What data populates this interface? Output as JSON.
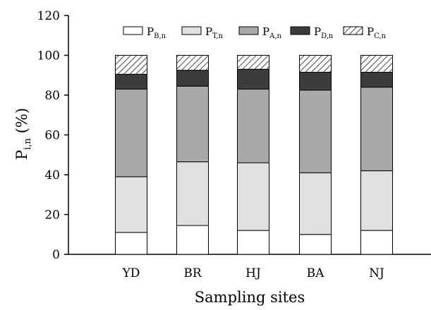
{
  "chart_data": {
    "type": "bar",
    "stacked": true,
    "categories": [
      "YD",
      "BR",
      "HJ",
      "BA",
      "NJ"
    ],
    "series": [
      {
        "name": "P",
        "sub": "B,n",
        "fill": "#ffffff",
        "pattern": "none",
        "values": [
          11,
          14.5,
          12,
          10,
          12
        ]
      },
      {
        "name": "P",
        "sub": "T,n",
        "fill": "#e0e0e0",
        "pattern": "none",
        "values": [
          28,
          32,
          34,
          31,
          30
        ]
      },
      {
        "name": "P",
        "sub": "A,n",
        "fill": "#a9a9a9",
        "pattern": "none",
        "values": [
          44,
          38,
          37,
          41.5,
          42
        ]
      },
      {
        "name": "P",
        "sub": "D,n",
        "fill": "#3c3c3c",
        "pattern": "none",
        "values": [
          7.5,
          8,
          10,
          9,
          7.5
        ]
      },
      {
        "name": "P",
        "sub": "C,n",
        "fill": "#ffffff",
        "pattern": "diagonal-hatch",
        "values": [
          9.5,
          7.5,
          7,
          8.5,
          8.5
        ]
      }
    ],
    "xlabel": "Sampling sites",
    "ylabel": {
      "main": "P",
      "sub": "i,n",
      "suffix": " (%)"
    },
    "ylim": [
      0,
      120
    ],
    "yticks": [
      0,
      20,
      40,
      60,
      80,
      100,
      120
    ],
    "grid": false,
    "legend": "top"
  }
}
